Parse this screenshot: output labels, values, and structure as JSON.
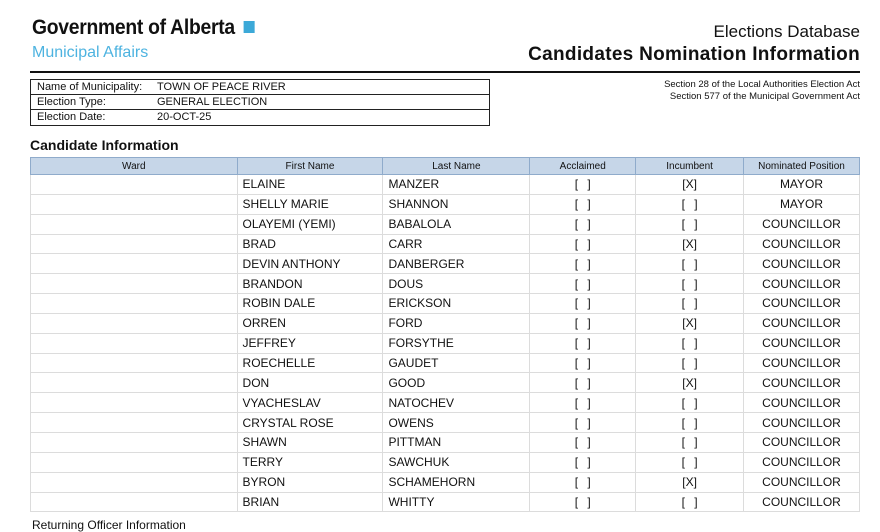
{
  "header": {
    "org": "Government of Alberta",
    "dept": "Municipal Affairs",
    "db": "Elections Database",
    "title": "Candidates Nomination Information",
    "sections": [
      "Section 28 of the Local Authorities Election Act",
      "Section 577 of the Municipal Government Act"
    ],
    "brand_color": "#3ca9d8"
  },
  "info": [
    {
      "label": "Name of Municipality:",
      "value": "TOWN OF PEACE RIVER"
    },
    {
      "label": "Election Type:",
      "value": "GENERAL ELECTION"
    },
    {
      "label": "Election Date:",
      "value": "20-OCT-25"
    }
  ],
  "candidates": {
    "heading": "Candidate Information",
    "columns": [
      "Ward",
      "First Name",
      "Last Name",
      "Acclaimed",
      "Incumbent",
      "Nominated Position"
    ],
    "rows": [
      [
        "",
        "ELAINE",
        "MANZER",
        "[ ]",
        "[X]",
        "MAYOR"
      ],
      [
        "",
        "SHELLY MARIE",
        "SHANNON",
        "[ ]",
        "[ ]",
        "MAYOR"
      ],
      [
        "",
        "OLAYEMI (YEMI)",
        "BABALOLA",
        "[ ]",
        "[ ]",
        "COUNCILLOR"
      ],
      [
        "",
        "BRAD",
        "CARR",
        "[ ]",
        "[X]",
        "COUNCILLOR"
      ],
      [
        "",
        "DEVIN ANTHONY",
        "DANBERGER",
        "[ ]",
        "[ ]",
        "COUNCILLOR"
      ],
      [
        "",
        "BRANDON",
        "DOUS",
        "[ ]",
        "[ ]",
        "COUNCILLOR"
      ],
      [
        "",
        "ROBIN DALE",
        "ERICKSON",
        "[ ]",
        "[ ]",
        "COUNCILLOR"
      ],
      [
        "",
        "ORREN",
        "FORD",
        "[ ]",
        "[X]",
        "COUNCILLOR"
      ],
      [
        "",
        "JEFFREY",
        "FORSYTHE",
        "[ ]",
        "[ ]",
        "COUNCILLOR"
      ],
      [
        "",
        "ROECHELLE",
        "GAUDET",
        "[ ]",
        "[ ]",
        "COUNCILLOR"
      ],
      [
        "",
        "DON",
        "GOOD",
        "[ ]",
        "[X]",
        "COUNCILLOR"
      ],
      [
        "",
        "VYACHESLAV",
        "NATOCHEV",
        "[ ]",
        "[ ]",
        "COUNCILLOR"
      ],
      [
        "",
        "CRYSTAL ROSE",
        "OWENS",
        "[ ]",
        "[ ]",
        "COUNCILLOR"
      ],
      [
        "",
        "SHAWN",
        "PITTMAN",
        "[ ]",
        "[ ]",
        "COUNCILLOR"
      ],
      [
        "",
        "TERRY",
        "SAWCHUK",
        "[ ]",
        "[ ]",
        "COUNCILLOR"
      ],
      [
        "",
        "BYRON",
        "SCHAMEHORN",
        "[ ]",
        "[X]",
        "COUNCILLOR"
      ],
      [
        "",
        "BRIAN",
        "WHITTY",
        "[ ]",
        "[ ]",
        "COUNCILLOR"
      ]
    ]
  },
  "footer": {
    "next_heading": "Returning Officer Information"
  }
}
